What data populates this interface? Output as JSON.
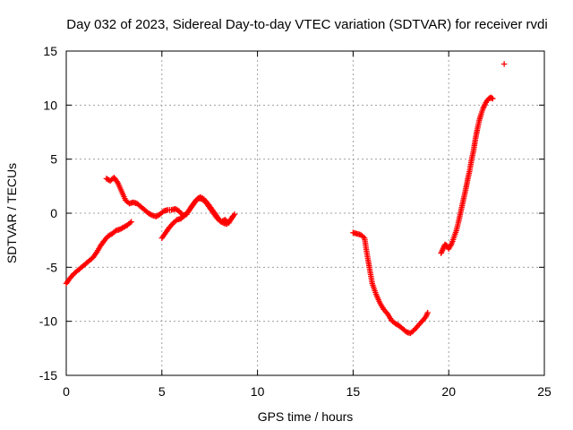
{
  "chart_data": {
    "type": "scatter",
    "title": "Day 032 of 2023, Sidereal Day-to-day VTEC variation (SDTVAR) for receiver rvdi",
    "xlabel": "GPS time / hours",
    "ylabel": "SDTVAR / TECUs",
    "xlim": [
      0,
      25
    ],
    "ylim": [
      -15,
      15
    ],
    "x_ticks": [
      "0",
      "5",
      "10",
      "15",
      "20",
      "25"
    ],
    "y_ticks": [
      "-15",
      "-10",
      "-5",
      "0",
      "5",
      "10",
      "15"
    ],
    "grid": true,
    "legend": "none",
    "marker": "plus",
    "series": [
      {
        "color": "#ff0000",
        "segments": [
          {
            "x": [
              0.0,
              0.2,
              0.4,
              0.6,
              0.8,
              1.0,
              1.2,
              1.4,
              1.6,
              1.8,
              2.0,
              2.2,
              2.4,
              2.6,
              2.8,
              3.0,
              3.2,
              3.4
            ],
            "y": [
              -6.5,
              -6.0,
              -5.6,
              -5.3,
              -5.0,
              -4.7,
              -4.4,
              -4.1,
              -3.6,
              -3.0,
              -2.5,
              -2.1,
              -1.9,
              -1.6,
              -1.5,
              -1.3,
              -1.1,
              -0.8
            ]
          },
          {
            "x": [
              2.1,
              2.3,
              2.5,
              2.7,
              2.9,
              3.1,
              3.3,
              3.5,
              3.7,
              3.9,
              4.1,
              4.3,
              4.5,
              4.7,
              4.9,
              5.1,
              5.3,
              5.5,
              5.7,
              5.9,
              6.1,
              6.3,
              6.5,
              6.7,
              6.9,
              7.1,
              7.3,
              7.5,
              7.7,
              7.9,
              8.1,
              8.3,
              8.5,
              8.7
            ],
            "y": [
              3.2,
              3.0,
              3.3,
              2.8,
              2.0,
              1.2,
              0.9,
              1.0,
              0.9,
              0.6,
              0.3,
              0.0,
              -0.2,
              -0.3,
              -0.1,
              0.2,
              0.3,
              0.3,
              0.4,
              0.2,
              -0.2,
              -0.1,
              0.5,
              1.0,
              1.4,
              1.3,
              1.0,
              0.5,
              0.0,
              -0.5,
              -0.8,
              -0.6,
              -0.9,
              -0.3
            ]
          },
          {
            "x": [
              5.0,
              5.2,
              5.4,
              5.6,
              5.8,
              6.0,
              6.2,
              6.4,
              6.6,
              6.8,
              7.0,
              7.2,
              7.4,
              7.6,
              7.8,
              8.0,
              8.2,
              8.4,
              8.6,
              8.8
            ],
            "y": [
              -2.3,
              -1.8,
              -1.3,
              -0.9,
              -0.6,
              -0.5,
              -0.2,
              0.2,
              0.7,
              1.2,
              1.5,
              1.3,
              0.9,
              0.4,
              -0.1,
              -0.6,
              -0.9,
              -1.0,
              -0.6,
              -0.1
            ]
          },
          {
            "x": [
              15.0,
              15.2,
              15.4,
              15.6,
              15.7,
              15.8,
              15.9,
              16.0,
              16.2,
              16.4,
              16.6,
              16.8,
              17.0,
              17.2,
              17.4,
              17.6,
              17.8,
              18.0,
              18.2,
              18.4,
              18.6,
              18.8,
              18.9
            ],
            "y": [
              -1.8,
              -1.9,
              -2.0,
              -2.3,
              -3.5,
              -4.5,
              -5.5,
              -6.5,
              -7.5,
              -8.3,
              -8.9,
              -9.3,
              -9.9,
              -10.2,
              -10.4,
              -10.7,
              -11.0,
              -11.1,
              -10.8,
              -10.4,
              -10.0,
              -9.6,
              -9.2
            ]
          },
          {
            "x": [
              19.6,
              19.7,
              19.8,
              19.9,
              20.0,
              20.1,
              20.2,
              20.3,
              20.4,
              20.5,
              20.6,
              20.7,
              20.8,
              20.9,
              21.0,
              21.1,
              21.2,
              21.3,
              21.4,
              21.5,
              21.6,
              21.7,
              21.8,
              21.9,
              22.0,
              22.1,
              22.2,
              22.3
            ],
            "y": [
              -3.7,
              -3.3,
              -2.9,
              -3.0,
              -3.3,
              -3.0,
              -2.6,
              -2.1,
              -1.6,
              -0.9,
              -0.1,
              0.7,
              1.5,
              2.3,
              3.2,
              4.0,
              5.0,
              5.8,
              6.9,
              7.8,
              8.6,
              9.2,
              9.7,
              10.1,
              10.4,
              10.6,
              10.7,
              10.6
            ]
          },
          {
            "x": [
              22.9
            ],
            "y": [
              13.8
            ]
          }
        ]
      }
    ]
  }
}
